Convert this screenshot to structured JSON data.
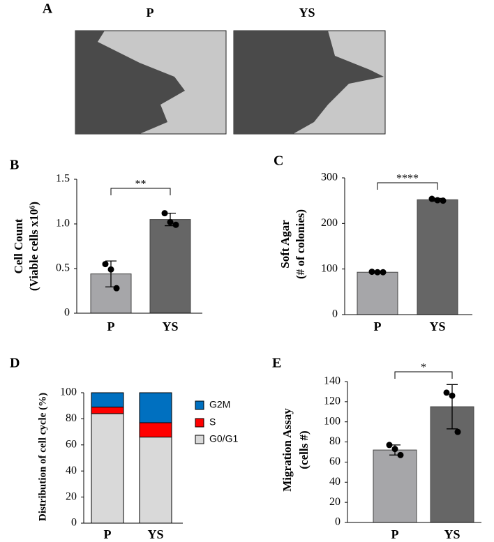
{
  "figure_a": {
    "label": "A",
    "captions": [
      "P",
      "YS"
    ]
  },
  "chart_data": [
    {
      "type": "bar",
      "panel_label": "B",
      "ylabel": [
        "Cell Count",
        "(Viable cells x10⁶)"
      ],
      "categories": [
        "P",
        "YS"
      ],
      "values": [
        0.44,
        1.05
      ],
      "errors": [
        0.145,
        0.07
      ],
      "points": [
        [
          0.55,
          0.49,
          0.28
        ],
        [
          1.12,
          1.02,
          0.99
        ]
      ],
      "colors": [
        "#a6a6a9",
        "#666666"
      ],
      "significance": "**",
      "ylim": [
        0,
        1.5
      ],
      "yticks": [
        0,
        {
          "value": 0.5,
          "label": "0.5"
        },
        {
          "value": 1,
          "label": "1.0"
        },
        {
          "value": 1.5,
          "label": "1.5"
        }
      ]
    },
    {
      "type": "bar",
      "panel_label": "C",
      "ylabel": [
        "Soft Agar",
        "(# of colonies)"
      ],
      "categories": [
        "P",
        "YS"
      ],
      "values": [
        93,
        252
      ],
      "errors": [
        2,
        3
      ],
      "points": [
        [
          94,
          93,
          93
        ],
        [
          254,
          251,
          250
        ]
      ],
      "colors": [
        "#a6a6a9",
        "#666666"
      ],
      "significance": "****",
      "ylim": [
        0,
        300
      ],
      "yticks": [
        0,
        100,
        200,
        300
      ]
    },
    {
      "type": "stacked_bar",
      "panel_label": "D",
      "ylabel": [
        "Distribution of cell cycle (%)"
      ],
      "categories": [
        "P",
        "YS"
      ],
      "series": [
        {
          "name": "G0/G1",
          "color": "#d9d9d9",
          "values": [
            84,
            66
          ]
        },
        {
          "name": "S",
          "color": "#ff0000",
          "values": [
            5,
            11
          ]
        },
        {
          "name": "G2M",
          "color": "#0070c0",
          "values": [
            11,
            23
          ]
        }
      ],
      "ylim": [
        0,
        100
      ],
      "yticks": [
        0,
        20,
        40,
        60,
        80,
        100
      ]
    },
    {
      "type": "bar",
      "panel_label": "E",
      "ylabel": [
        "Migration Assay",
        "(cells #)"
      ],
      "categories": [
        "P",
        "YS"
      ],
      "values": [
        72,
        115
      ],
      "errors": [
        5,
        22
      ],
      "points": [
        [
          77,
          73,
          67
        ],
        [
          129,
          126,
          90
        ]
      ],
      "colors": [
        "#a6a6a9",
        "#666666"
      ],
      "significance": "*",
      "ylim": [
        0,
        140
      ],
      "yticks": [
        0,
        20,
        40,
        60,
        80,
        100,
        120,
        140
      ]
    }
  ]
}
